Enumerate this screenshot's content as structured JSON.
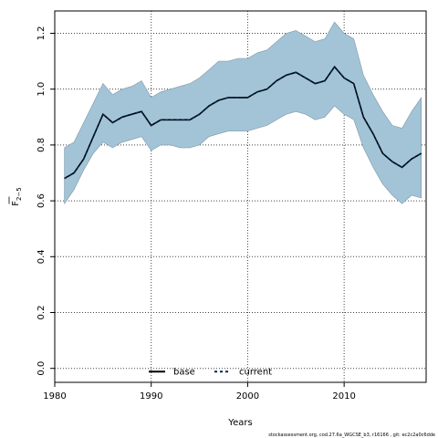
{
  "chart_data": {
    "type": "line",
    "title": "",
    "xlabel": "Years",
    "ylabel": "F",
    "ylabel_subscript": "2−5",
    "xlim": [
      1980,
      2018.5
    ],
    "ylim": [
      -0.05,
      1.28
    ],
    "x_ticks": [
      1980,
      1990,
      2000,
      2010
    ],
    "y_ticks": [
      0.0,
      0.2,
      0.4,
      0.6,
      0.8,
      1.0,
      1.2
    ],
    "y_tick_labels": [
      "0.0",
      "0.2",
      "0.4",
      "0.6",
      "0.8",
      "1.0",
      "1.2"
    ],
    "grid": true,
    "legend_position": "bottom-center",
    "legend": [
      {
        "label": "base",
        "style": "solid",
        "color": "#000000"
      },
      {
        "label": "current",
        "style": "dashed",
        "color": "#00264d"
      }
    ],
    "band_color": "#a3c4d6",
    "band_edge_color": "#7f98a8",
    "x": [
      1981,
      1982,
      1983,
      1984,
      1985,
      1986,
      1987,
      1988,
      1989,
      1990,
      1991,
      1992,
      1993,
      1994,
      1995,
      1996,
      1997,
      1998,
      1999,
      2000,
      2001,
      2002,
      2003,
      2004,
      2005,
      2006,
      2007,
      2008,
      2009,
      2010,
      2011,
      2012,
      2013,
      2014,
      2015,
      2016,
      2017,
      2018
    ],
    "series": [
      {
        "name": "current",
        "values": [
          0.68,
          0.7,
          0.75,
          0.83,
          0.91,
          0.88,
          0.9,
          0.91,
          0.92,
          0.87,
          0.89,
          0.89,
          0.89,
          0.89,
          0.91,
          0.94,
          0.96,
          0.97,
          0.97,
          0.97,
          0.99,
          1.0,
          1.03,
          1.05,
          1.06,
          1.04,
          1.02,
          1.03,
          1.08,
          1.04,
          1.02,
          0.9,
          0.84,
          0.77,
          0.74,
          0.72,
          0.75,
          0.77
        ]
      }
    ],
    "band": {
      "upper": [
        0.79,
        0.81,
        0.88,
        0.95,
        1.02,
        0.98,
        1.0,
        1.01,
        1.03,
        0.97,
        0.99,
        1.0,
        1.01,
        1.02,
        1.04,
        1.07,
        1.1,
        1.1,
        1.11,
        1.11,
        1.13,
        1.14,
        1.17,
        1.2,
        1.21,
        1.19,
        1.17,
        1.18,
        1.24,
        1.2,
        1.18,
        1.05,
        0.98,
        0.92,
        0.87,
        0.86,
        0.92,
        0.97
      ],
      "lower": [
        0.59,
        0.64,
        0.71,
        0.77,
        0.81,
        0.79,
        0.81,
        0.82,
        0.83,
        0.78,
        0.8,
        0.8,
        0.79,
        0.79,
        0.8,
        0.83,
        0.84,
        0.85,
        0.85,
        0.85,
        0.86,
        0.87,
        0.89,
        0.91,
        0.92,
        0.91,
        0.89,
        0.9,
        0.94,
        0.91,
        0.89,
        0.79,
        0.72,
        0.66,
        0.62,
        0.59,
        0.62,
        0.61
      ]
    }
  },
  "footer": "stockassessment.org, cod.27.6a_WGCSE_b3, r16166 , git: ec2c2a0c6dde"
}
